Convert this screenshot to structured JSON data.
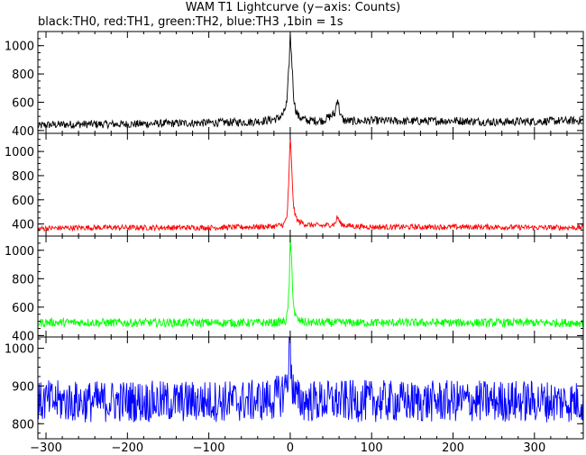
{
  "title": "WAM T1 Lightcurve (y−axis: Counts)",
  "subtitle": "black:TH0, red:TH1, green:TH2, blue:TH3 ,1bin = 1s",
  "chart_data": {
    "type": "line",
    "xlim": [
      -310,
      360
    ],
    "x_ticks": [
      -300,
      -200,
      -100,
      0,
      100,
      200,
      300
    ],
    "x_tick_labels": [
      "−300",
      "−200",
      "−100",
      "0",
      "100",
      "200",
      "300"
    ],
    "xlabel": "",
    "panels": [
      {
        "name": "TH0",
        "color": "#000000",
        "ylim": [
          380,
          1100
        ],
        "y_ticks": [
          400,
          600,
          800,
          1000
        ],
        "y_tick_labels": [
          "400",
          "600",
          "800",
          "1000"
        ],
        "x": [
          -310,
          -300,
          -250,
          -200,
          -150,
          -100,
          -50,
          -30,
          -15,
          -8,
          -4,
          -2,
          0,
          2,
          4,
          6,
          10,
          20,
          40,
          55,
          58,
          60,
          62,
          66,
          80,
          100,
          150,
          200,
          250,
          300,
          350,
          360
        ],
        "values": [
          430,
          440,
          445,
          445,
          450,
          455,
          460,
          470,
          485,
          520,
          600,
          800,
          1080,
          900,
          660,
          560,
          500,
          470,
          470,
          520,
          640,
          560,
          500,
          470,
          465,
          470,
          465,
          470,
          460,
          465,
          470,
          470
        ]
      },
      {
        "name": "TH1",
        "color": "#ff0000",
        "ylim": [
          300,
          1150
        ],
        "y_ticks": [
          400,
          600,
          800,
          1000
        ],
        "y_tick_labels": [
          "400",
          "600",
          "800",
          "1000"
        ],
        "x": [
          -310,
          -300,
          -250,
          -200,
          -150,
          -100,
          -50,
          -20,
          -8,
          -4,
          -2,
          0,
          2,
          4,
          6,
          10,
          20,
          40,
          55,
          58,
          60,
          62,
          66,
          80,
          100,
          150,
          200,
          250,
          300,
          350,
          360
        ],
        "values": [
          360,
          365,
          370,
          370,
          370,
          370,
          375,
          380,
          395,
          460,
          700,
          1140,
          820,
          560,
          470,
          420,
          395,
          385,
          400,
          460,
          430,
          400,
          390,
          380,
          375,
          375,
          375,
          375,
          370,
          370,
          370
        ]
      },
      {
        "name": "TH2",
        "color": "#00ff00",
        "ylim": [
          390,
          1100
        ],
        "y_ticks": [
          400,
          600,
          800,
          1000
        ],
        "y_tick_labels": [
          "400",
          "600",
          "800",
          "1000"
        ],
        "x": [
          -310,
          -300,
          -250,
          -200,
          -150,
          -100,
          -50,
          -20,
          -6,
          -3,
          -1,
          0,
          2,
          4,
          6,
          10,
          20,
          60,
          100,
          150,
          200,
          250,
          300,
          350,
          360
        ],
        "values": [
          490,
          492,
          492,
          490,
          490,
          490,
          490,
          490,
          500,
          560,
          800,
          1080,
          880,
          620,
          540,
          505,
          492,
          490,
          490,
          490,
          490,
          490,
          490,
          490,
          490
        ]
      },
      {
        "name": "TH3",
        "color": "#0000ff",
        "ylim": [
          760,
          1030
        ],
        "y_ticks": [
          800,
          900,
          1000
        ],
        "y_tick_labels": [
          "800",
          "900",
          "1000"
        ],
        "x": [
          -310,
          -300,
          -250,
          -200,
          -150,
          -100,
          -50,
          -20,
          -10,
          -5,
          -2,
          0,
          2,
          4,
          6,
          10,
          20,
          60,
          100,
          150,
          200,
          250,
          300,
          350,
          360
        ],
        "values": [
          855,
          860,
          858,
          860,
          858,
          860,
          860,
          865,
          880,
          900,
          960,
          1025,
          930,
          880,
          870,
          862,
          860,
          860,
          860,
          858,
          860,
          860,
          860,
          858,
          858
        ]
      }
    ]
  }
}
